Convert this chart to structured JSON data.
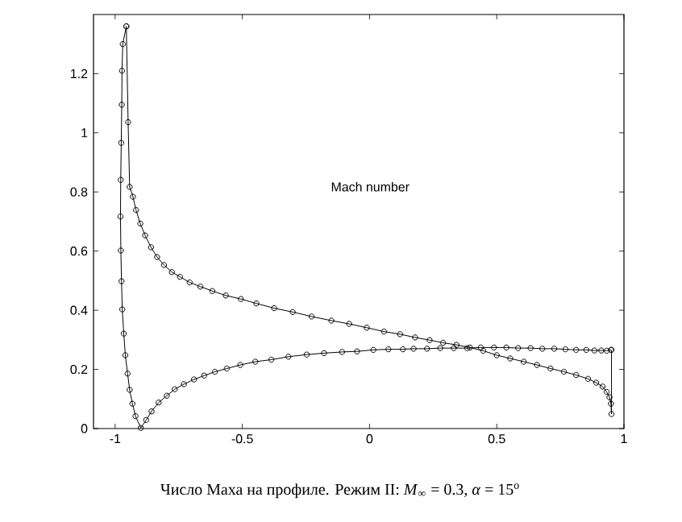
{
  "chart_data": {
    "type": "line",
    "marker": "circle",
    "line_style": "solid",
    "grid": false,
    "xlim": [
      -1.085,
      1
    ],
    "ylim": [
      0,
      1.4
    ],
    "xticks": [
      -1,
      -0.5,
      0,
      0.5,
      1
    ],
    "yticks": [
      0,
      0.2,
      0.4,
      0.6,
      0.8,
      1,
      1.2
    ],
    "annotations": [
      "Mach number",
      "Число Маха на профиле. Режим II: *M*$_{∞}$ = 0.3, *α* = 15$^{o}$"
    ],
    "series": [
      {
        "color": "#000000",
        "x": [
          -0.956,
          -0.97,
          -0.973,
          -0.974,
          -0.976,
          -0.978,
          -0.979,
          -0.9775,
          -0.975,
          -0.972,
          -0.966,
          -0.96,
          -0.951,
          -0.943,
          -0.932,
          -0.92,
          -0.899,
          -0.878,
          -0.857,
          -0.829,
          -0.797,
          -0.766,
          -0.73,
          -0.69,
          -0.65,
          -0.608,
          -0.561,
          -0.508,
          -0.449,
          -0.386,
          -0.319,
          -0.247,
          -0.179,
          -0.108,
          -0.049,
          0.015,
          0.074,
          0.131,
          0.173,
          0.226,
          0.278,
          0.331,
          0.384,
          0.437,
          0.489,
          0.538,
          0.584,
          0.633,
          0.679,
          0.726,
          0.77,
          0.812,
          0.852,
          0.884,
          0.911,
          0.932,
          0.949
        ],
        "values": [
          1.36,
          1.3,
          1.21,
          1.095,
          0.966,
          0.841,
          0.717,
          0.602,
          0.498,
          0.403,
          0.321,
          0.248,
          0.186,
          0.131,
          0.084,
          0.042,
          0.002,
          0.029,
          0.058,
          0.088,
          0.111,
          0.133,
          0.15,
          0.166,
          0.179,
          0.192,
          0.203,
          0.215,
          0.226,
          0.233,
          0.243,
          0.25,
          0.255,
          0.259,
          0.261,
          0.266,
          0.268,
          0.268,
          0.27,
          0.27,
          0.272,
          0.272,
          0.272,
          0.274,
          0.274,
          0.274,
          0.272,
          0.272,
          0.27,
          0.27,
          0.268,
          0.266,
          0.266,
          0.264,
          0.264,
          0.263,
          0.266
        ]
      },
      {
        "color": "#000000",
        "x": [
          -0.956,
          -0.949,
          -0.943,
          -0.93,
          -0.918,
          -0.901,
          -0.882,
          -0.859,
          -0.835,
          -0.808,
          -0.777,
          -0.745,
          -0.707,
          -0.665,
          -0.618,
          -0.565,
          -0.506,
          -0.445,
          -0.375,
          -0.302,
          -0.228,
          -0.15,
          -0.08,
          -0.011,
          0.057,
          0.12,
          0.179,
          0.236,
          0.289,
          0.342,
          0.394,
          0.447,
          0.5,
          0.553,
          0.606,
          0.658,
          0.711,
          0.764,
          0.812,
          0.859,
          0.891,
          0.916,
          0.932,
          0.943,
          0.949,
          0.951,
          0.951
        ],
        "values": [
          1.36,
          1.036,
          0.817,
          0.784,
          0.739,
          0.693,
          0.653,
          0.613,
          0.58,
          0.553,
          0.529,
          0.513,
          0.494,
          0.48,
          0.465,
          0.45,
          0.438,
          0.423,
          0.407,
          0.394,
          0.379,
          0.365,
          0.354,
          0.341,
          0.328,
          0.319,
          0.308,
          0.299,
          0.29,
          0.283,
          0.274,
          0.263,
          0.248,
          0.237,
          0.226,
          0.215,
          0.203,
          0.192,
          0.181,
          0.168,
          0.155,
          0.142,
          0.124,
          0.106,
          0.084,
          0.049,
          0.266
        ]
      }
    ]
  }
}
